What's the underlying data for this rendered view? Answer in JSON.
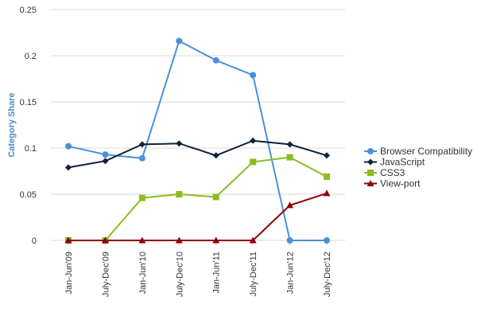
{
  "chart_data": {
    "type": "line",
    "title": "",
    "xlabel": "",
    "ylabel": "Category Share",
    "ylim": [
      0,
      0.25
    ],
    "yticks": [
      "0",
      "0.05",
      "0.1",
      "0.15",
      "0.2",
      "0.25"
    ],
    "ytick_values": [
      0,
      0.05,
      0.1,
      0.15,
      0.2,
      0.25
    ],
    "categories": [
      "Jan-Jun'09",
      "July-Dec'09",
      "Jan-Jun'10",
      "July-Dec'10",
      "Jan-Jun'11",
      "July-Dec'11",
      "Jan-Jun'12",
      "July-Dec'12"
    ],
    "grid": "horizontal",
    "legend_position": "right",
    "series": [
      {
        "name": "Browser Compatibility",
        "color": "#4a90d9",
        "marker": "circle",
        "values": [
          0.102,
          0.093,
          0.089,
          0.216,
          0.195,
          0.179,
          0.0,
          0.0
        ]
      },
      {
        "name": "JavaScript",
        "color": "#0d233a",
        "marker": "diamond",
        "values": [
          0.079,
          0.086,
          0.104,
          0.105,
          0.092,
          0.108,
          0.104,
          0.092
        ]
      },
      {
        "name": "CSS3",
        "color": "#8bbc21",
        "marker": "square",
        "values": [
          0.0,
          0.0,
          0.046,
          0.05,
          0.047,
          0.085,
          0.09,
          0.069
        ]
      },
      {
        "name": "View-port",
        "color": "#910000",
        "marker": "triangle",
        "values": [
          0.0,
          0.0,
          0.0,
          0.0,
          0.0,
          0.0,
          0.038,
          0.051
        ]
      }
    ]
  }
}
